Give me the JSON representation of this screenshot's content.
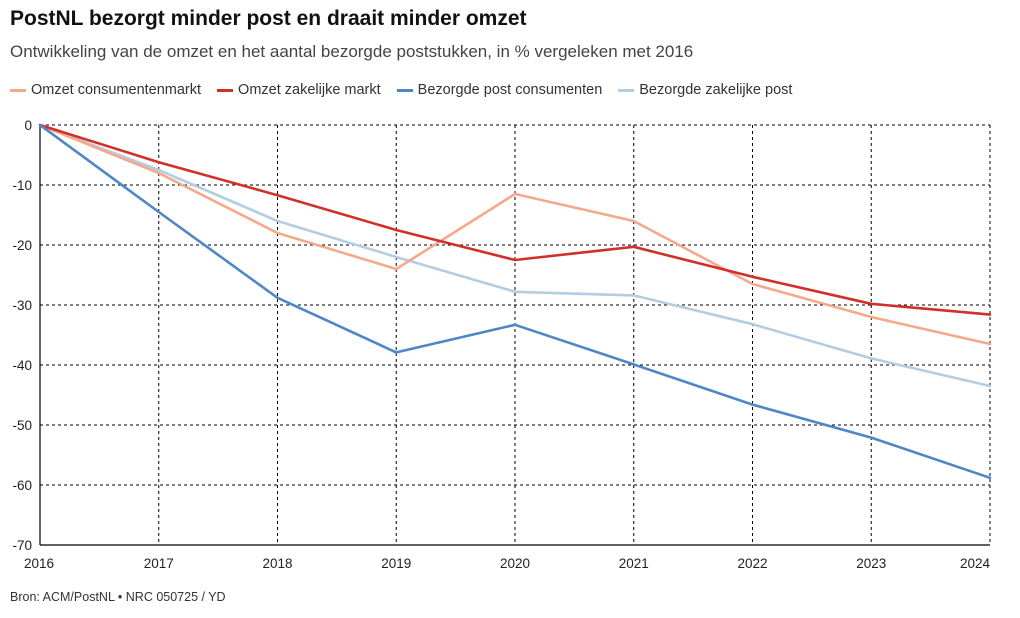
{
  "title": "PostNL bezorgt minder post en draait minder omzet",
  "subtitle": "Ontwikkeling van de omzet en het aantal bezorgde poststukken, in % vergeleken met 2016",
  "source": "Bron: ACM/PostNL • NRC 050725 / YD",
  "chart_data": {
    "type": "line",
    "title": "PostNL bezorgt minder post en draait minder omzet",
    "subtitle": "Ontwikkeling van de omzet en het aantal bezorgde poststukken, in % vergeleken met 2016",
    "xlabel": "",
    "ylabel": "",
    "x": [
      2016,
      2017,
      2018,
      2019,
      2020,
      2021,
      2022,
      2023,
      2024
    ],
    "x_tick_labels": [
      "2016",
      "2017",
      "2018",
      "2019",
      "2020",
      "2021",
      "2022",
      "2023",
      "2024"
    ],
    "ylim": [
      -70,
      0
    ],
    "y_ticks": [
      0,
      -10,
      -20,
      -30,
      -40,
      -50,
      -60,
      -70
    ],
    "y_tick_labels": [
      "0",
      "-10",
      "-20",
      "-30",
      "-40",
      "-50",
      "-60",
      "-70"
    ],
    "grid": true,
    "legend_position": "top-left",
    "series": [
      {
        "name": "Omzet consumentenmarkt",
        "color": "#f4a98b",
        "values": [
          0,
          -8,
          -18,
          -24,
          -11.5,
          -16,
          -26.5,
          -32,
          -36.5
        ]
      },
      {
        "name": "Omzet zakelijke markt",
        "color": "#d1302a",
        "values": [
          0,
          -6.2,
          -11.7,
          -17.5,
          -22.5,
          -20.3,
          -25.3,
          -29.8,
          -31.6
        ]
      },
      {
        "name": "Bezorgde post consumenten",
        "color": "#4f86c6",
        "values": [
          0,
          -14.5,
          -28.8,
          -37.9,
          -33.3,
          -39.9,
          -46.6,
          -52.1,
          -58.8
        ]
      },
      {
        "name": "Bezorgde zakelijke post",
        "color": "#b3cde3",
        "values": [
          0,
          -7.5,
          -16,
          -22,
          -27.8,
          -28.4,
          -33.2,
          -38.9,
          -43.5
        ]
      }
    ]
  }
}
